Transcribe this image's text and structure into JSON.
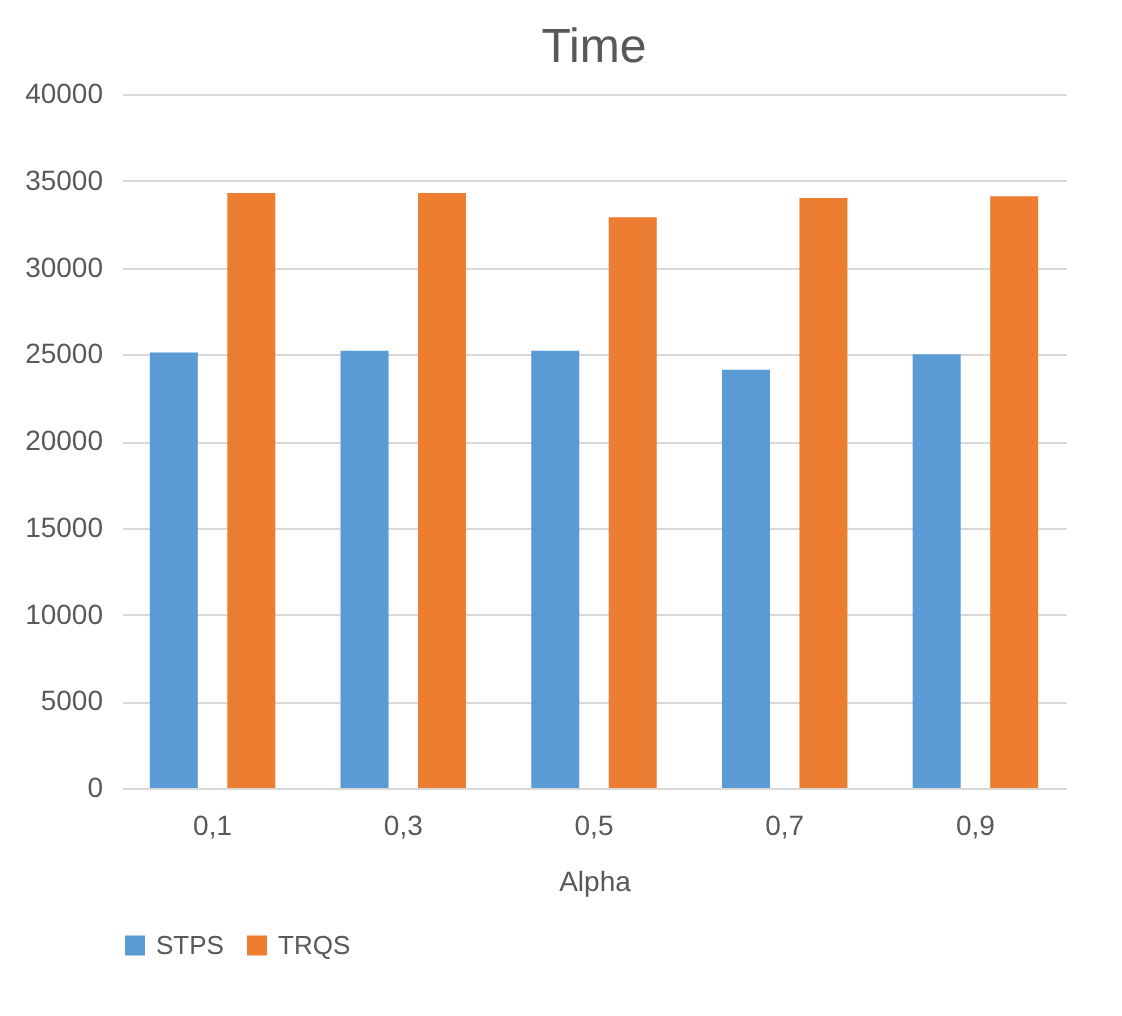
{
  "chart_data": {
    "type": "bar",
    "title": "Time",
    "xlabel": "Alpha",
    "categories": [
      "0,1",
      "0,3",
      "0,5",
      "0,7",
      "0,9"
    ],
    "series": [
      {
        "name": "STPS",
        "color": "#5b9bd5",
        "values": [
          25100,
          25200,
          25200,
          24100,
          25000
        ]
      },
      {
        "name": "TRQS",
        "color": "#ed7d31",
        "values": [
          34300,
          34300,
          32900,
          34000,
          34100
        ]
      }
    ],
    "ylim": [
      0,
      40000
    ],
    "yticks": [
      0,
      5000,
      10000,
      15000,
      20000,
      25000,
      30000,
      35000,
      40000
    ],
    "grid": "y",
    "legend": "bottom"
  }
}
